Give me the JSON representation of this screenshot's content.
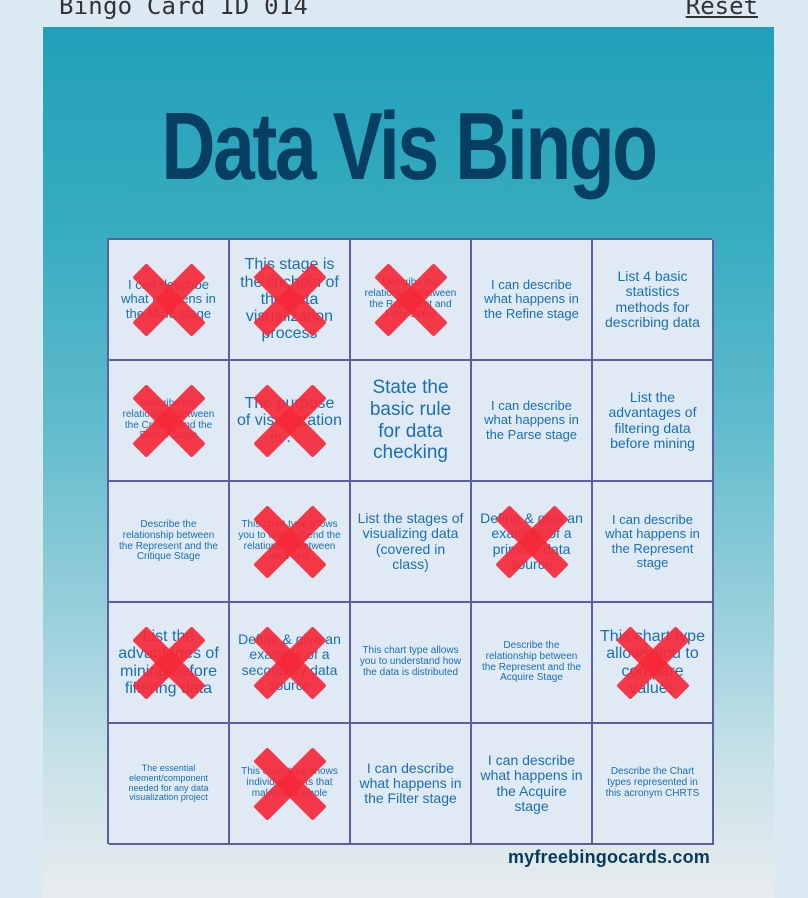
{
  "header": {
    "card_id": "Bingo Card ID 014",
    "reset_label": "Reset"
  },
  "card": {
    "title": "Data Vis Bingo",
    "footer": "myfreebingocards.com",
    "cells": [
      {
        "text": "I can describe what happens in the Mine stage",
        "marked": true,
        "size": "s-sm"
      },
      {
        "text": "This stage is the linchpin of the data visualization process",
        "marked": true,
        "size": "s-l"
      },
      {
        "text": "Describe the relationship between the Represent and Filter Stage",
        "marked": true,
        "size": "s-xs"
      },
      {
        "text": "I can describe what happens in the Refine stage",
        "marked": false,
        "size": "s-sm"
      },
      {
        "text": "List 4 basic statistics methods for describing data",
        "marked": false,
        "size": "s-m"
      },
      {
        "text": "Describe the relationship between the Critique and the Refine Stage",
        "marked": true,
        "size": "s-xs"
      },
      {
        "text": "The purpose of visualization is . . .",
        "marked": true,
        "size": "s-l"
      },
      {
        "text": "State the basic rule for data checking",
        "marked": false,
        "size": "s-xl"
      },
      {
        "text": "I can describe what happens in the Parse stage",
        "marked": false,
        "size": "s-sm"
      },
      {
        "text": "List the advantages of filtering data before mining",
        "marked": false,
        "size": "s-m"
      },
      {
        "text": "Describe the relationship between the Represent and the Critique Stage",
        "marked": false,
        "size": "s-xs"
      },
      {
        "text": "This chart type allows you to comprehend the relationship between data sets",
        "marked": true,
        "size": "s-xs"
      },
      {
        "text": "List the stages of visualizing data (covered in class)",
        "marked": false,
        "size": "s-m"
      },
      {
        "text": "Define & give an example of a primary data source",
        "marked": true,
        "size": "s-m"
      },
      {
        "text": "I can describe what happens in the Represent stage",
        "marked": false,
        "size": "s-sm"
      },
      {
        "text": "List the advantages of mining before filtering data",
        "marked": true,
        "size": "s-l"
      },
      {
        "text": "Define & give an example of a secondary data source",
        "marked": true,
        "size": "s-m"
      },
      {
        "text": "This chart type allows you to understand how the data is distributed",
        "marked": false,
        "size": "s-xs"
      },
      {
        "text": "Describe the relationship between the Represent and the Acquire Stage",
        "marked": false,
        "size": "s-xs"
      },
      {
        "text": "This chart type allows you to compare values",
        "marked": true,
        "size": "s-l"
      },
      {
        "text": "The essential element/component needed for any data visualization project",
        "marked": false,
        "size": "s-xxs"
      },
      {
        "text": "This chart type shows individual parts that make up a whole",
        "marked": true,
        "size": "s-xs"
      },
      {
        "text": "I can describe what happens in the Filter stage",
        "marked": false,
        "size": "s-m"
      },
      {
        "text": "I can describe what happens in the Acquire stage",
        "marked": false,
        "size": "s-m"
      },
      {
        "text": "Describe the Chart types represented in this acronym CHRTS",
        "marked": false,
        "size": "s-xs"
      }
    ]
  },
  "colors": {
    "title": "#063f62",
    "cell_text": "#1a6fb4",
    "grid_border": "#5b5ea3",
    "mark": "#f52837"
  }
}
